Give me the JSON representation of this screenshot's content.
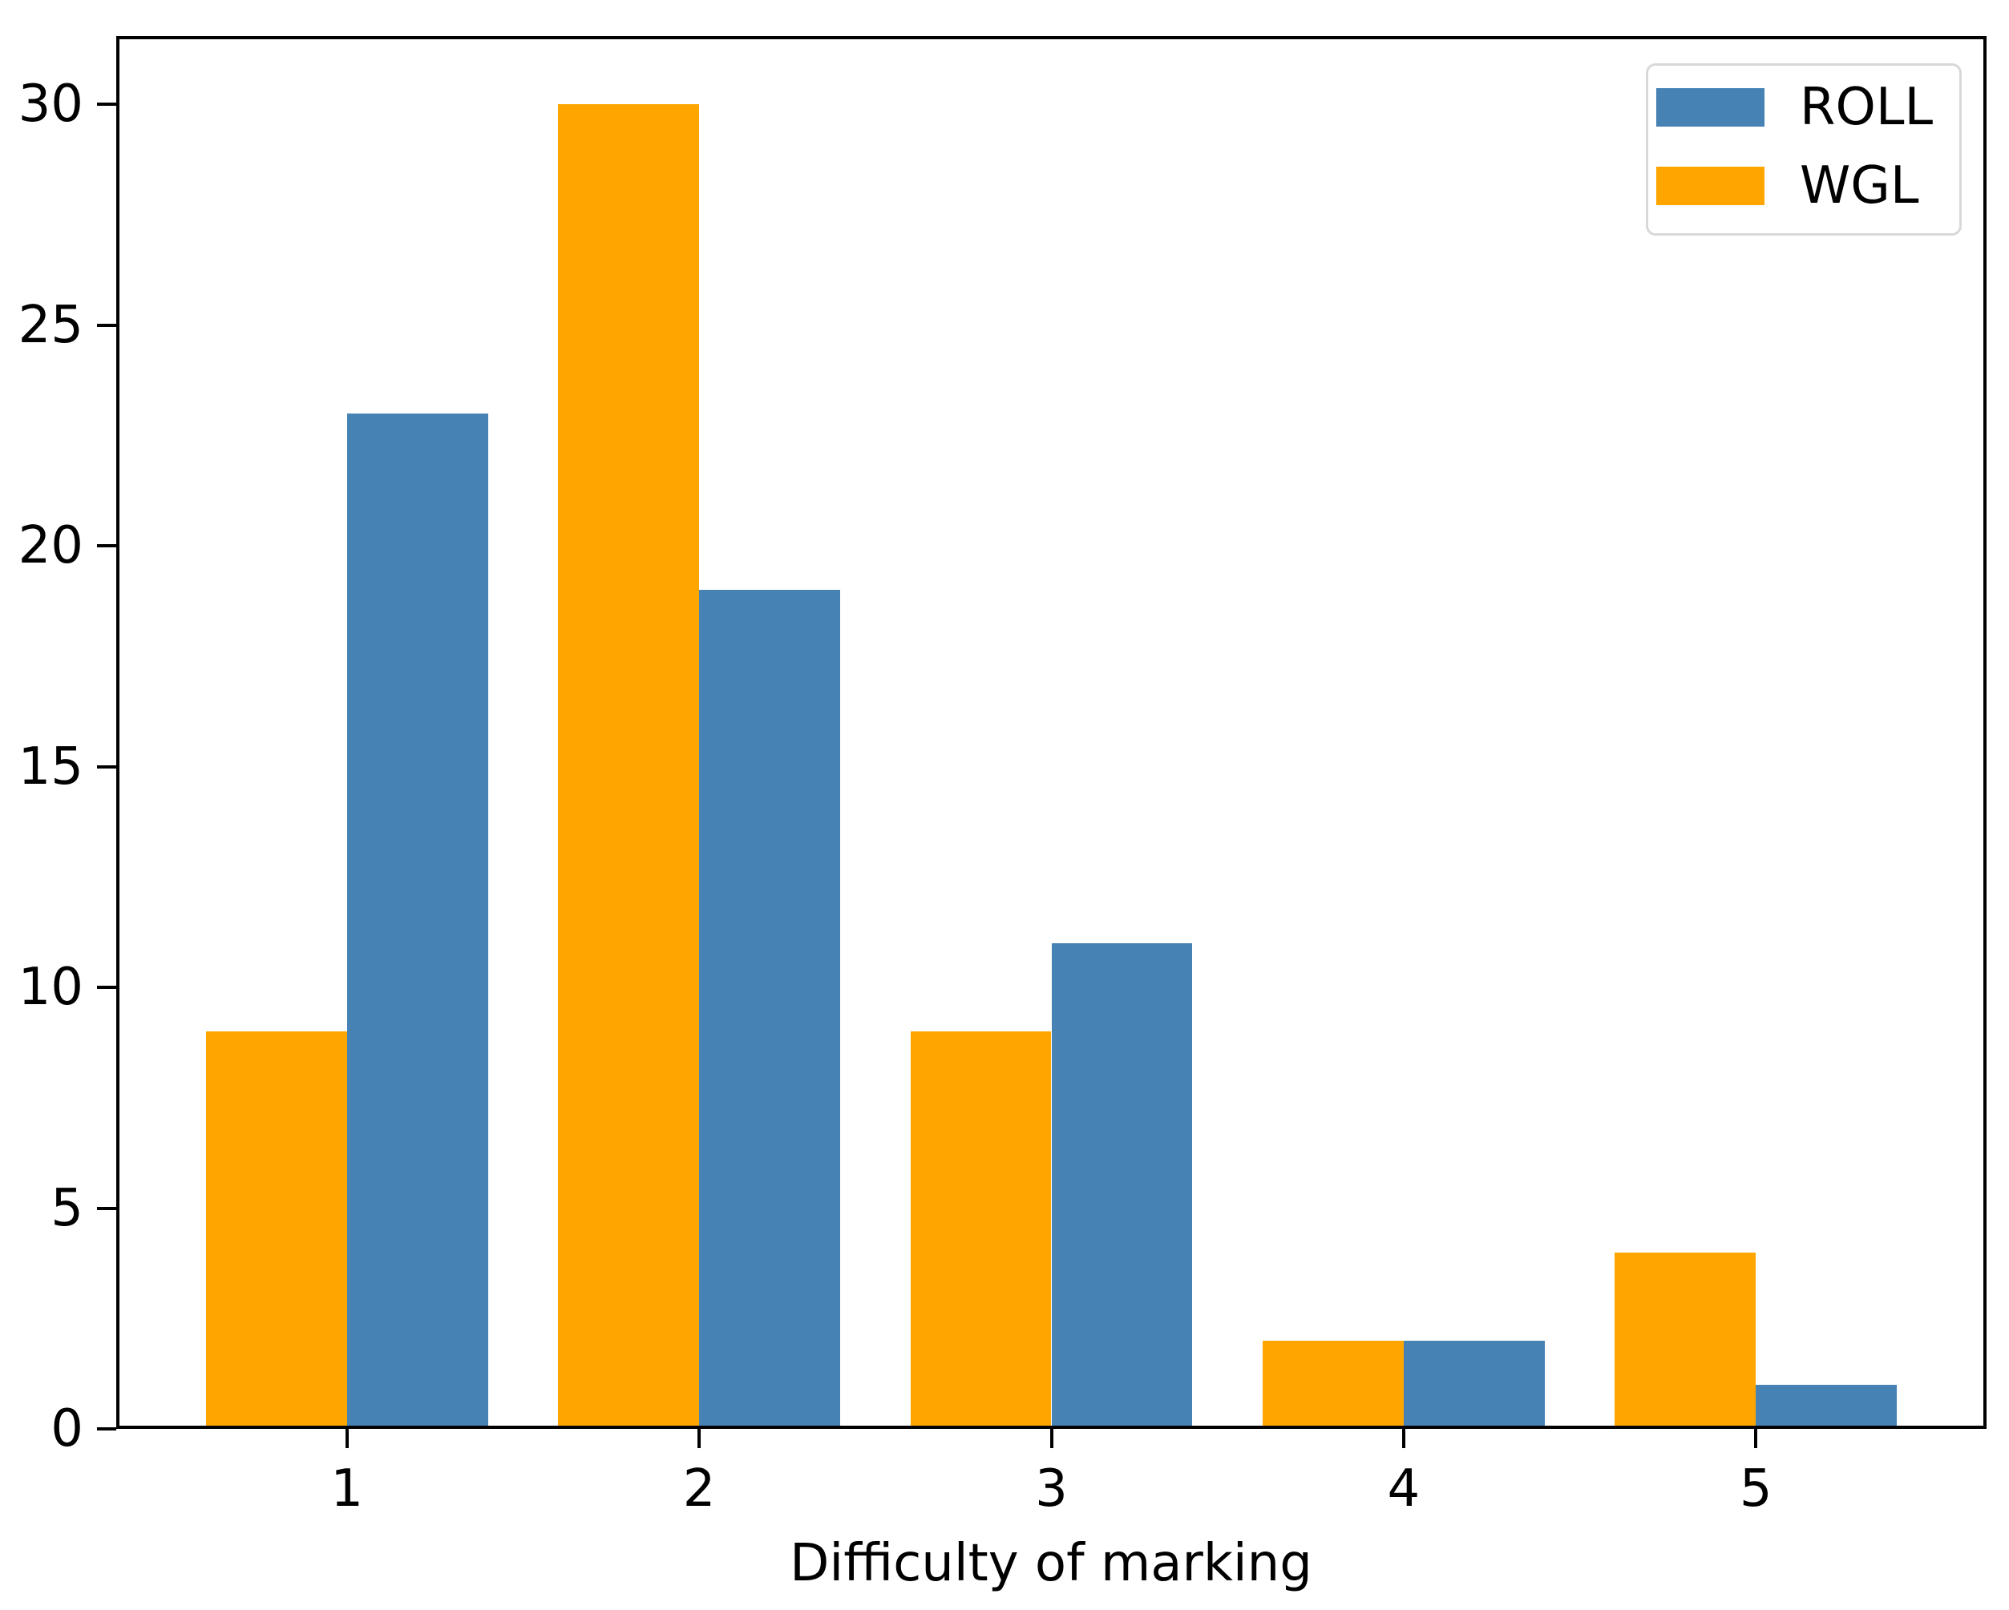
{
  "chart_data": {
    "type": "bar",
    "title": "",
    "xlabel": "Difficulty of marking",
    "ylabel": "",
    "categories": [
      "1",
      "2",
      "3",
      "4",
      "5"
    ],
    "series": [
      {
        "name": "ROLL",
        "color": "#4682B4",
        "values": [
          23,
          19,
          11,
          2,
          1
        ]
      },
      {
        "name": "WGL",
        "color": "#FFA500",
        "values": [
          9,
          30,
          9,
          2,
          4
        ]
      }
    ],
    "bar_order_left_to_right": [
      "WGL",
      "ROLL"
    ],
    "bar_width_units": 0.4,
    "y_ticks": [
      0,
      5,
      10,
      15,
      20,
      25,
      30
    ],
    "ylim": [
      0,
      31.55
    ],
    "xlim": [
      0.345,
      5.655
    ],
    "grid": false,
    "legend": {
      "position": "upper right",
      "entries": [
        "ROLL",
        "WGL"
      ]
    }
  }
}
